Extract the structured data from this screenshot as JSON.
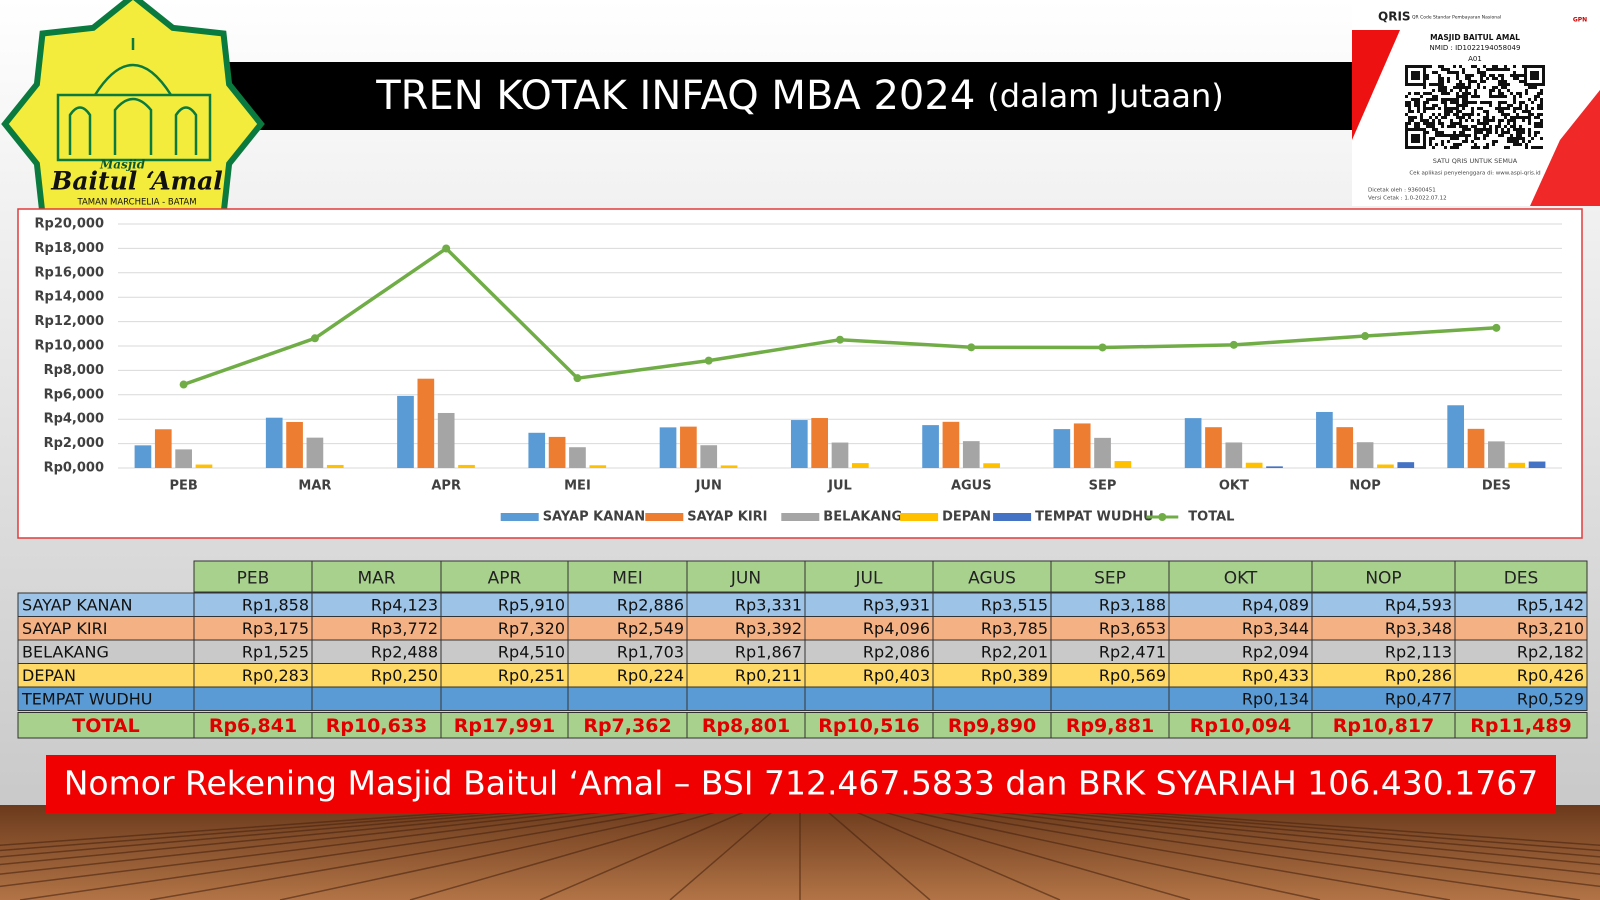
{
  "logo": {
    "line1": "Masjid",
    "line2": "Baitul ‘Amal",
    "line3": "TAMAN MARCHELIA - BATAM"
  },
  "qris": {
    "brand": "QRIS",
    "tagline": "QR Code Standar Pembayaran Nasional",
    "merchant": "MASJID BAITUL AMAL",
    "nmid": "NMID : ID1022194058049",
    "terminal": "A01",
    "slogan": "SATU QRIS UNTUK SEMUA",
    "check": "Cek aplikasi penyelenggara di: www.aspi-qris.id",
    "printed_by": "Dicetak oleh : 93600451",
    "version": "Versi Cetak : 1.0-2022.07.12",
    "gpn": "GPN"
  },
  "chart_data": {
    "type": "bar",
    "title": "TREN KOTAK INFAQ MBA 2024",
    "subtitle": "(dalam Jutaan)",
    "categories": [
      "PEB",
      "MAR",
      "APR",
      "MEI",
      "JUN",
      "JUL",
      "AGUS",
      "SEP",
      "OKT",
      "NOP",
      "DES"
    ],
    "series": [
      {
        "name": "SAYAP KANAN",
        "color": "#5b9bd5",
        "values": [
          1858,
          4123,
          5910,
          2886,
          3331,
          3931,
          3515,
          3188,
          4089,
          4593,
          5142
        ]
      },
      {
        "name": "SAYAP KIRI",
        "color": "#ed7d31",
        "values": [
          3175,
          3772,
          7320,
          2549,
          3392,
          4096,
          3785,
          3653,
          3344,
          3348,
          3210
        ]
      },
      {
        "name": "BELAKANG",
        "color": "#a5a5a5",
        "values": [
          1525,
          2488,
          4510,
          1703,
          1867,
          2086,
          2201,
          2471,
          2094,
          2113,
          2182
        ]
      },
      {
        "name": "DEPAN",
        "color": "#ffc000",
        "values": [
          283,
          250,
          251,
          224,
          211,
          403,
          389,
          569,
          433,
          286,
          426
        ]
      },
      {
        "name": "TEMPAT WUDHU",
        "color": "#4472c4",
        "values": [
          null,
          null,
          null,
          null,
          null,
          null,
          null,
          null,
          134,
          477,
          529
        ]
      },
      {
        "name": "TOTAL",
        "color": "#70ad47",
        "type": "line",
        "values": [
          6841,
          10633,
          17991,
          7362,
          8801,
          10516,
          9890,
          9881,
          10094,
          10817,
          11489
        ]
      }
    ],
    "ylim": [
      0,
      20000
    ],
    "yticks": [
      {
        "value": 0,
        "label": "Rp0,000"
      },
      {
        "value": 2000,
        "label": "Rp2,000"
      },
      {
        "value": 4000,
        "label": "Rp4,000"
      },
      {
        "value": 6000,
        "label": "Rp6,000"
      },
      {
        "value": 8000,
        "label": "Rp8,000"
      },
      {
        "value": 10000,
        "label": "Rp10,000"
      },
      {
        "value": 12000,
        "label": "Rp12,000"
      },
      {
        "value": 14000,
        "label": "Rp14,000"
      },
      {
        "value": 16000,
        "label": "Rp16,000"
      },
      {
        "value": 18000,
        "label": "Rp18,000"
      },
      {
        "value": 20000,
        "label": "Rp20,000"
      }
    ],
    "grid": true,
    "legend": "bottom"
  },
  "table": {
    "rows": [
      [
        "Rp1,858",
        "Rp4,123",
        "Rp5,910",
        "Rp2,886",
        "Rp3,331",
        "Rp3,931",
        "Rp3,515",
        "Rp3,188",
        "Rp4,089",
        "Rp4,593",
        "Rp5,142"
      ],
      [
        "Rp3,175",
        "Rp3,772",
        "Rp7,320",
        "Rp2,549",
        "Rp3,392",
        "Rp4,096",
        "Rp3,785",
        "Rp3,653",
        "Rp3,344",
        "Rp3,348",
        "Rp3,210"
      ],
      [
        "Rp1,525",
        "Rp2,488",
        "Rp4,510",
        "Rp1,703",
        "Rp1,867",
        "Rp2,086",
        "Rp2,201",
        "Rp2,471",
        "Rp2,094",
        "Rp2,113",
        "Rp2,182"
      ],
      [
        "Rp0,283",
        "Rp0,250",
        "Rp0,251",
        "Rp0,224",
        "Rp0,211",
        "Rp0,403",
        "Rp0,389",
        "Rp0,569",
        "Rp0,433",
        "Rp0,286",
        "Rp0,426"
      ],
      [
        null,
        null,
        null,
        null,
        null,
        null,
        null,
        null,
        "Rp0,134",
        "Rp0,477",
        "Rp0,529"
      ],
      [
        "Rp6,841",
        "Rp10,633",
        "Rp17,991",
        "Rp7,362",
        "Rp8,801",
        "Rp10,516",
        "Rp9,890",
        "Rp9,881",
        "Rp10,094",
        "Rp10,817",
        "Rp11,489"
      ]
    ]
  },
  "footer": "Nomor Rekening Masjid Baitul ‘Amal – BSI 712.467.5833 dan BRK SYARIAH 106.430.1767"
}
